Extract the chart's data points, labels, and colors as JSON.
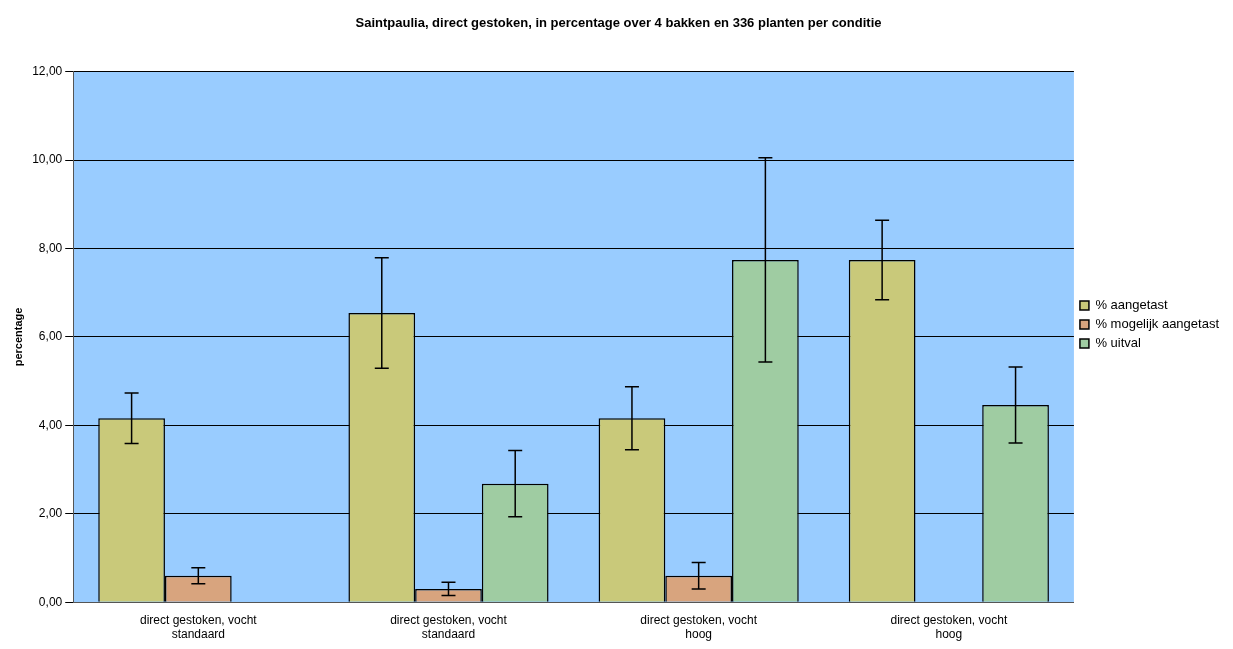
{
  "chart_data": {
    "type": "bar",
    "title": "Saintpaulia, direct gestoken, in percentage over 4 bakken en 336 planten per conditie",
    "ylabel": "percentage",
    "categories": [
      "direct gestoken, vocht standaard",
      "direct gestoken, vocht standaard",
      "direct gestoken, vocht hoog",
      "direct gestoken, vocht hoog"
    ],
    "series": [
      {
        "name": "% aangetast",
        "color": "#c9c97a",
        "values": [
          4.16,
          6.54,
          4.16,
          7.74
        ],
        "errors": [
          0.57,
          1.25,
          0.71,
          0.9
        ]
      },
      {
        "name": "% mogelijk aangetast",
        "color": "#d8a47e",
        "values": [
          0.6,
          0.3,
          0.6,
          0
        ],
        "errors": [
          0.18,
          0.15,
          0.3,
          null
        ]
      },
      {
        "name": "% uitval",
        "color": "#9fcca2",
        "values": [
          0,
          2.68,
          7.74,
          4.46
        ],
        "errors": [
          null,
          0.75,
          2.31,
          0.86
        ]
      }
    ],
    "ylim": [
      0,
      12
    ],
    "yticks": [
      {
        "value": 0,
        "label": "0,00"
      },
      {
        "value": 2,
        "label": "2,00"
      },
      {
        "value": 4,
        "label": "4,00"
      },
      {
        "value": 6,
        "label": "6,00"
      },
      {
        "value": 8,
        "label": "8,00"
      },
      {
        "value": 10,
        "label": "10,00"
      },
      {
        "value": 12,
        "label": "12,00"
      }
    ],
    "grid": "y",
    "legend": "right"
  }
}
